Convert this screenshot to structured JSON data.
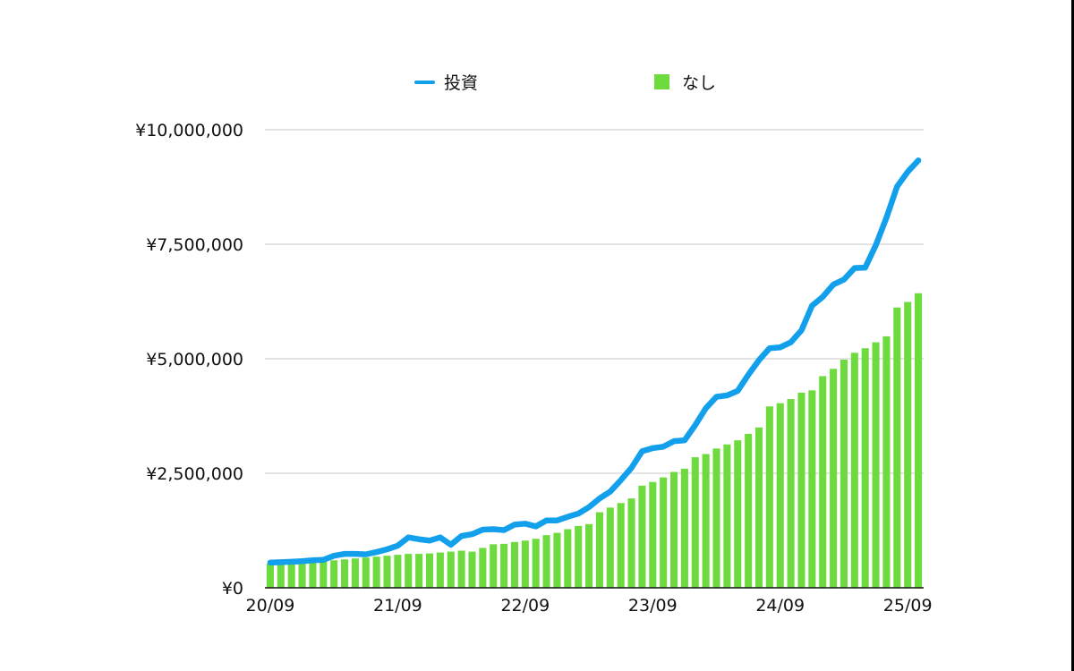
{
  "chart_data": {
    "type": "bar",
    "title": "",
    "xlabel": "",
    "ylabel": "",
    "ylim": [
      0,
      10000000
    ],
    "y_ticks": [
      0,
      2500000,
      5000000,
      7500000,
      10000000
    ],
    "y_tick_labels": [
      "¥0",
      "¥2,500,000",
      "¥5,000,000",
      "¥7,500,000",
      "¥10,000,000"
    ],
    "x_tick_labels": [
      "20/09",
      "21/09",
      "22/09",
      "23/09",
      "24/09",
      "25/09"
    ],
    "x_tick_index": [
      0,
      12,
      24,
      36,
      48,
      60
    ],
    "grid": true,
    "legend_position": "top",
    "series": [
      {
        "name": "投資",
        "kind": "line",
        "color": "#12A0EC",
        "values": [
          550000,
          560000,
          570000,
          580000,
          600000,
          610000,
          700000,
          740000,
          740000,
          730000,
          780000,
          840000,
          920000,
          1100000,
          1060000,
          1030000,
          1100000,
          940000,
          1130000,
          1170000,
          1270000,
          1280000,
          1260000,
          1380000,
          1400000,
          1340000,
          1470000,
          1470000,
          1550000,
          1620000,
          1760000,
          1950000,
          2100000,
          2350000,
          2620000,
          2980000,
          3050000,
          3080000,
          3200000,
          3220000,
          3550000,
          3920000,
          4170000,
          4200000,
          4300000,
          4650000,
          4970000,
          5230000,
          5250000,
          5360000,
          5620000,
          6160000,
          6350000,
          6620000,
          6730000,
          6980000,
          6990000,
          7480000,
          8080000,
          8760000,
          9080000,
          9330000
        ]
      },
      {
        "name": "なし",
        "kind": "bar",
        "color": "#6DDB3D",
        "values": [
          530000,
          540000,
          550000,
          560000,
          560000,
          570000,
          600000,
          620000,
          640000,
          660000,
          680000,
          700000,
          720000,
          740000,
          740000,
          750000,
          770000,
          790000,
          810000,
          790000,
          870000,
          950000,
          960000,
          1000000,
          1030000,
          1070000,
          1150000,
          1200000,
          1280000,
          1350000,
          1390000,
          1650000,
          1750000,
          1850000,
          1950000,
          2230000,
          2310000,
          2410000,
          2530000,
          2600000,
          2850000,
          2920000,
          3040000,
          3130000,
          3220000,
          3360000,
          3500000,
          3960000,
          4030000,
          4120000,
          4260000,
          4310000,
          4620000,
          4780000,
          4980000,
          5130000,
          5230000,
          5360000,
          5490000,
          6120000,
          6240000,
          6430000
        ]
      }
    ]
  }
}
